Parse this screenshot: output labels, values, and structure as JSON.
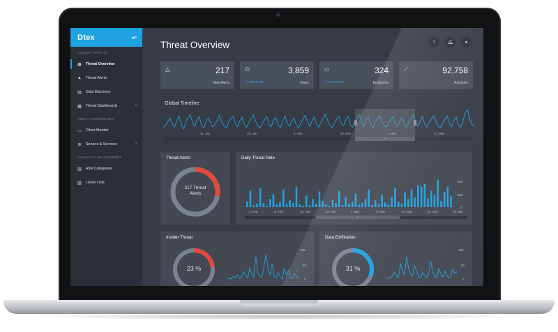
{
  "app": {
    "logo": "Dtex",
    "collapse_icon": "collapse-icon"
  },
  "sidebar": {
    "sections": [
      {
        "label": "GLOBAL THREATS",
        "items": [
          {
            "label": "Threat Overview",
            "icon": "globe-icon",
            "active": true
          },
          {
            "label": "Threat Alerts",
            "icon": "warning-icon"
          },
          {
            "label": "Data Discovery",
            "icon": "document-icon"
          },
          {
            "label": "Threat Dashboards",
            "icon": "grid-icon",
            "chevron": true
          }
        ]
      },
      {
        "label": "HEALTH MONITORING",
        "items": [
          {
            "label": "Client Monitor",
            "icon": "monitor-icon"
          },
          {
            "label": "Servers & Services",
            "icon": "server-icon",
            "chevron": true
          }
        ]
      },
      {
        "label": "ANALYTICS MANAGEMENT",
        "items": [
          {
            "label": "Risk Categories",
            "icon": "list-icon"
          },
          {
            "label": "Lexon Lists",
            "icon": "list-icon"
          }
        ]
      }
    ]
  },
  "header": {
    "title": "Threat Overview",
    "icons": [
      "search-icon",
      "bell-icon",
      "user-icon"
    ]
  },
  "stats": [
    {
      "icon": "bell-icon",
      "value": "217",
      "label": "New Alerts",
      "trend": ""
    },
    {
      "icon": "users-icon",
      "value": "3,859",
      "label": "Users",
      "trend": "264 at risk"
    },
    {
      "icon": "devices-icon",
      "value": "324",
      "label": "Endpoints",
      "trend": "142 at risk"
    },
    {
      "icon": "chart-line-icon",
      "value": "92,758",
      "label": "Activities",
      "trend": ""
    }
  ],
  "timeline": {
    "title": "Global Timeline",
    "x_labels": [
      "11. Jan",
      "25. Jan",
      "8. Feb",
      "22. Feb",
      "7. Mar",
      "21. Mar"
    ],
    "series": [
      8,
      12,
      18,
      24,
      15,
      9,
      20,
      28,
      14,
      6,
      16,
      26,
      30,
      18,
      10,
      22,
      27,
      12,
      8,
      19,
      25,
      16,
      9,
      14,
      21,
      29,
      17,
      11,
      7,
      18,
      23,
      28,
      15,
      10,
      20,
      26,
      13,
      9,
      17,
      24,
      30,
      19,
      11,
      8,
      16,
      22,
      27,
      14,
      10,
      21,
      25,
      12,
      9,
      18,
      28,
      16,
      11,
      19,
      24,
      13,
      8,
      15,
      23,
      29,
      18,
      10,
      20,
      26,
      14,
      9,
      17,
      25,
      31,
      20,
      12,
      8,
      16,
      23,
      28,
      15,
      11,
      22,
      27,
      13,
      9,
      18,
      24,
      30,
      17,
      10,
      21,
      26,
      14,
      8,
      17,
      23,
      29,
      19,
      12,
      9,
      16,
      22,
      27,
      15,
      10,
      20,
      25,
      13,
      9,
      18,
      24,
      30,
      16,
      11,
      19,
      27,
      14,
      9,
      17,
      23,
      29,
      18,
      11,
      8,
      16,
      22,
      28,
      15,
      10,
      21,
      26,
      13,
      9,
      19,
      34,
      38,
      22,
      14,
      10
    ]
  },
  "threat_alerts": {
    "title": "Threat Alerts",
    "center_value": "217 Threat",
    "center_label": "Alerts",
    "red_fraction": 0.28
  },
  "daily_threat_rate": {
    "title": "Daily Threat Rate",
    "y_ticks": [
      "200",
      "100",
      "0"
    ],
    "x_labels": [
      "1. Feb",
      "8. Feb",
      "15. Feb",
      "22. Feb",
      "1. Mar",
      "8. Mar",
      "15. Mar",
      "22. Mar",
      "29. Mar"
    ],
    "bars": [
      40,
      120,
      15,
      25,
      140,
      30,
      10,
      60,
      95,
      20,
      35,
      130,
      25,
      50,
      30,
      150,
      20,
      10,
      85,
      15,
      60,
      25,
      115,
      45,
      20,
      10,
      55,
      30,
      120,
      15,
      70,
      25,
      40,
      100,
      20,
      30,
      60,
      130,
      15,
      50,
      25,
      90,
      35,
      20,
      75,
      140,
      40,
      25,
      110,
      60,
      130,
      70,
      160,
      150,
      170,
      65,
      120,
      90,
      200,
      45,
      110,
      150,
      80
    ]
  },
  "insider_threat": {
    "title": "Insider Threat",
    "center_value": "23 %",
    "fraction": 0.23,
    "y_ticks": [
      "100",
      "50",
      "0"
    ],
    "series": [
      5,
      8,
      6,
      12,
      9,
      15,
      7,
      10,
      22,
      14,
      8,
      30,
      18,
      10,
      55,
      20,
      12,
      9,
      35,
      60,
      25,
      15,
      40,
      12,
      8,
      20,
      10,
      6,
      30,
      15,
      25,
      10,
      8,
      18,
      12,
      6
    ]
  },
  "data_exfiltration": {
    "title": "Data Exfiltration",
    "center_value": "31 %",
    "fraction": 0.31,
    "y_ticks": [
      "100",
      "50",
      "0"
    ],
    "series": [
      6,
      10,
      8,
      14,
      20,
      12,
      9,
      40,
      22,
      15,
      55,
      30,
      18,
      12,
      35,
      25,
      10,
      8,
      20,
      14,
      9,
      18,
      45,
      22,
      12,
      8,
      30,
      16,
      10,
      24,
      14,
      8,
      12,
      28,
      18,
      22
    ]
  },
  "colors": {
    "accent": "#1ea2e1",
    "danger": "#e04b3c",
    "ring": "#7a8190"
  }
}
